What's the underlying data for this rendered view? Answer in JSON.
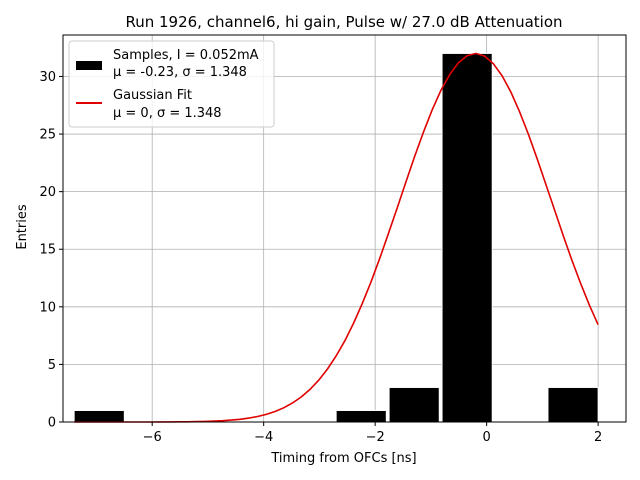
{
  "chart_data": {
    "type": "bar",
    "title": "Run 1926, channel6, hi gain, Pulse w/ 27.0 dB Attenuation",
    "xlabel": "Timing from OFCs [ns]",
    "ylabel": "Entries",
    "xlim": [
      -7.6,
      2.5
    ],
    "ylim": [
      0,
      33.6
    ],
    "x_ticks": [
      -6,
      -4,
      -2,
      0,
      2
    ],
    "y_ticks": [
      0,
      5,
      10,
      15,
      20,
      25,
      30
    ],
    "x_tick_labels": [
      "−6",
      "−4",
      "−2",
      "0",
      "2"
    ],
    "y_tick_labels": [
      "0",
      "5",
      "10",
      "15",
      "20",
      "25",
      "30"
    ],
    "grid": true,
    "legend_position": "top-left",
    "histogram": {
      "name": "Samples, I = 0.052mA",
      "stats": "μ = -0.23, σ = 1.348",
      "color": "#000000",
      "bins": [
        {
          "x0": -7.4,
          "x1": -6.5,
          "count": 1
        },
        {
          "x0": -6.5,
          "x1": -5.6,
          "count": 0
        },
        {
          "x0": -5.6,
          "x1": -4.65,
          "count": 0
        },
        {
          "x0": -4.65,
          "x1": -3.7,
          "count": 0
        },
        {
          "x0": -3.7,
          "x1": -2.75,
          "count": 0
        },
        {
          "x0": -2.7,
          "x1": -1.8,
          "count": 1
        },
        {
          "x0": -1.75,
          "x1": -0.85,
          "count": 3
        },
        {
          "x0": -0.8,
          "x1": 0.1,
          "count": 32
        },
        {
          "x0": 0.1,
          "x1": 1.05,
          "count": 0
        },
        {
          "x0": 1.1,
          "x1": 2.0,
          "count": 3
        }
      ]
    },
    "fit": {
      "name": "Gaussian Fit",
      "stats": "μ = 0, σ = 1.348",
      "color": "#e00000",
      "mu": -0.2,
      "sigma": 1.348,
      "amplitude": 32.0,
      "x_range": [
        -7.4,
        2.0
      ]
    }
  }
}
